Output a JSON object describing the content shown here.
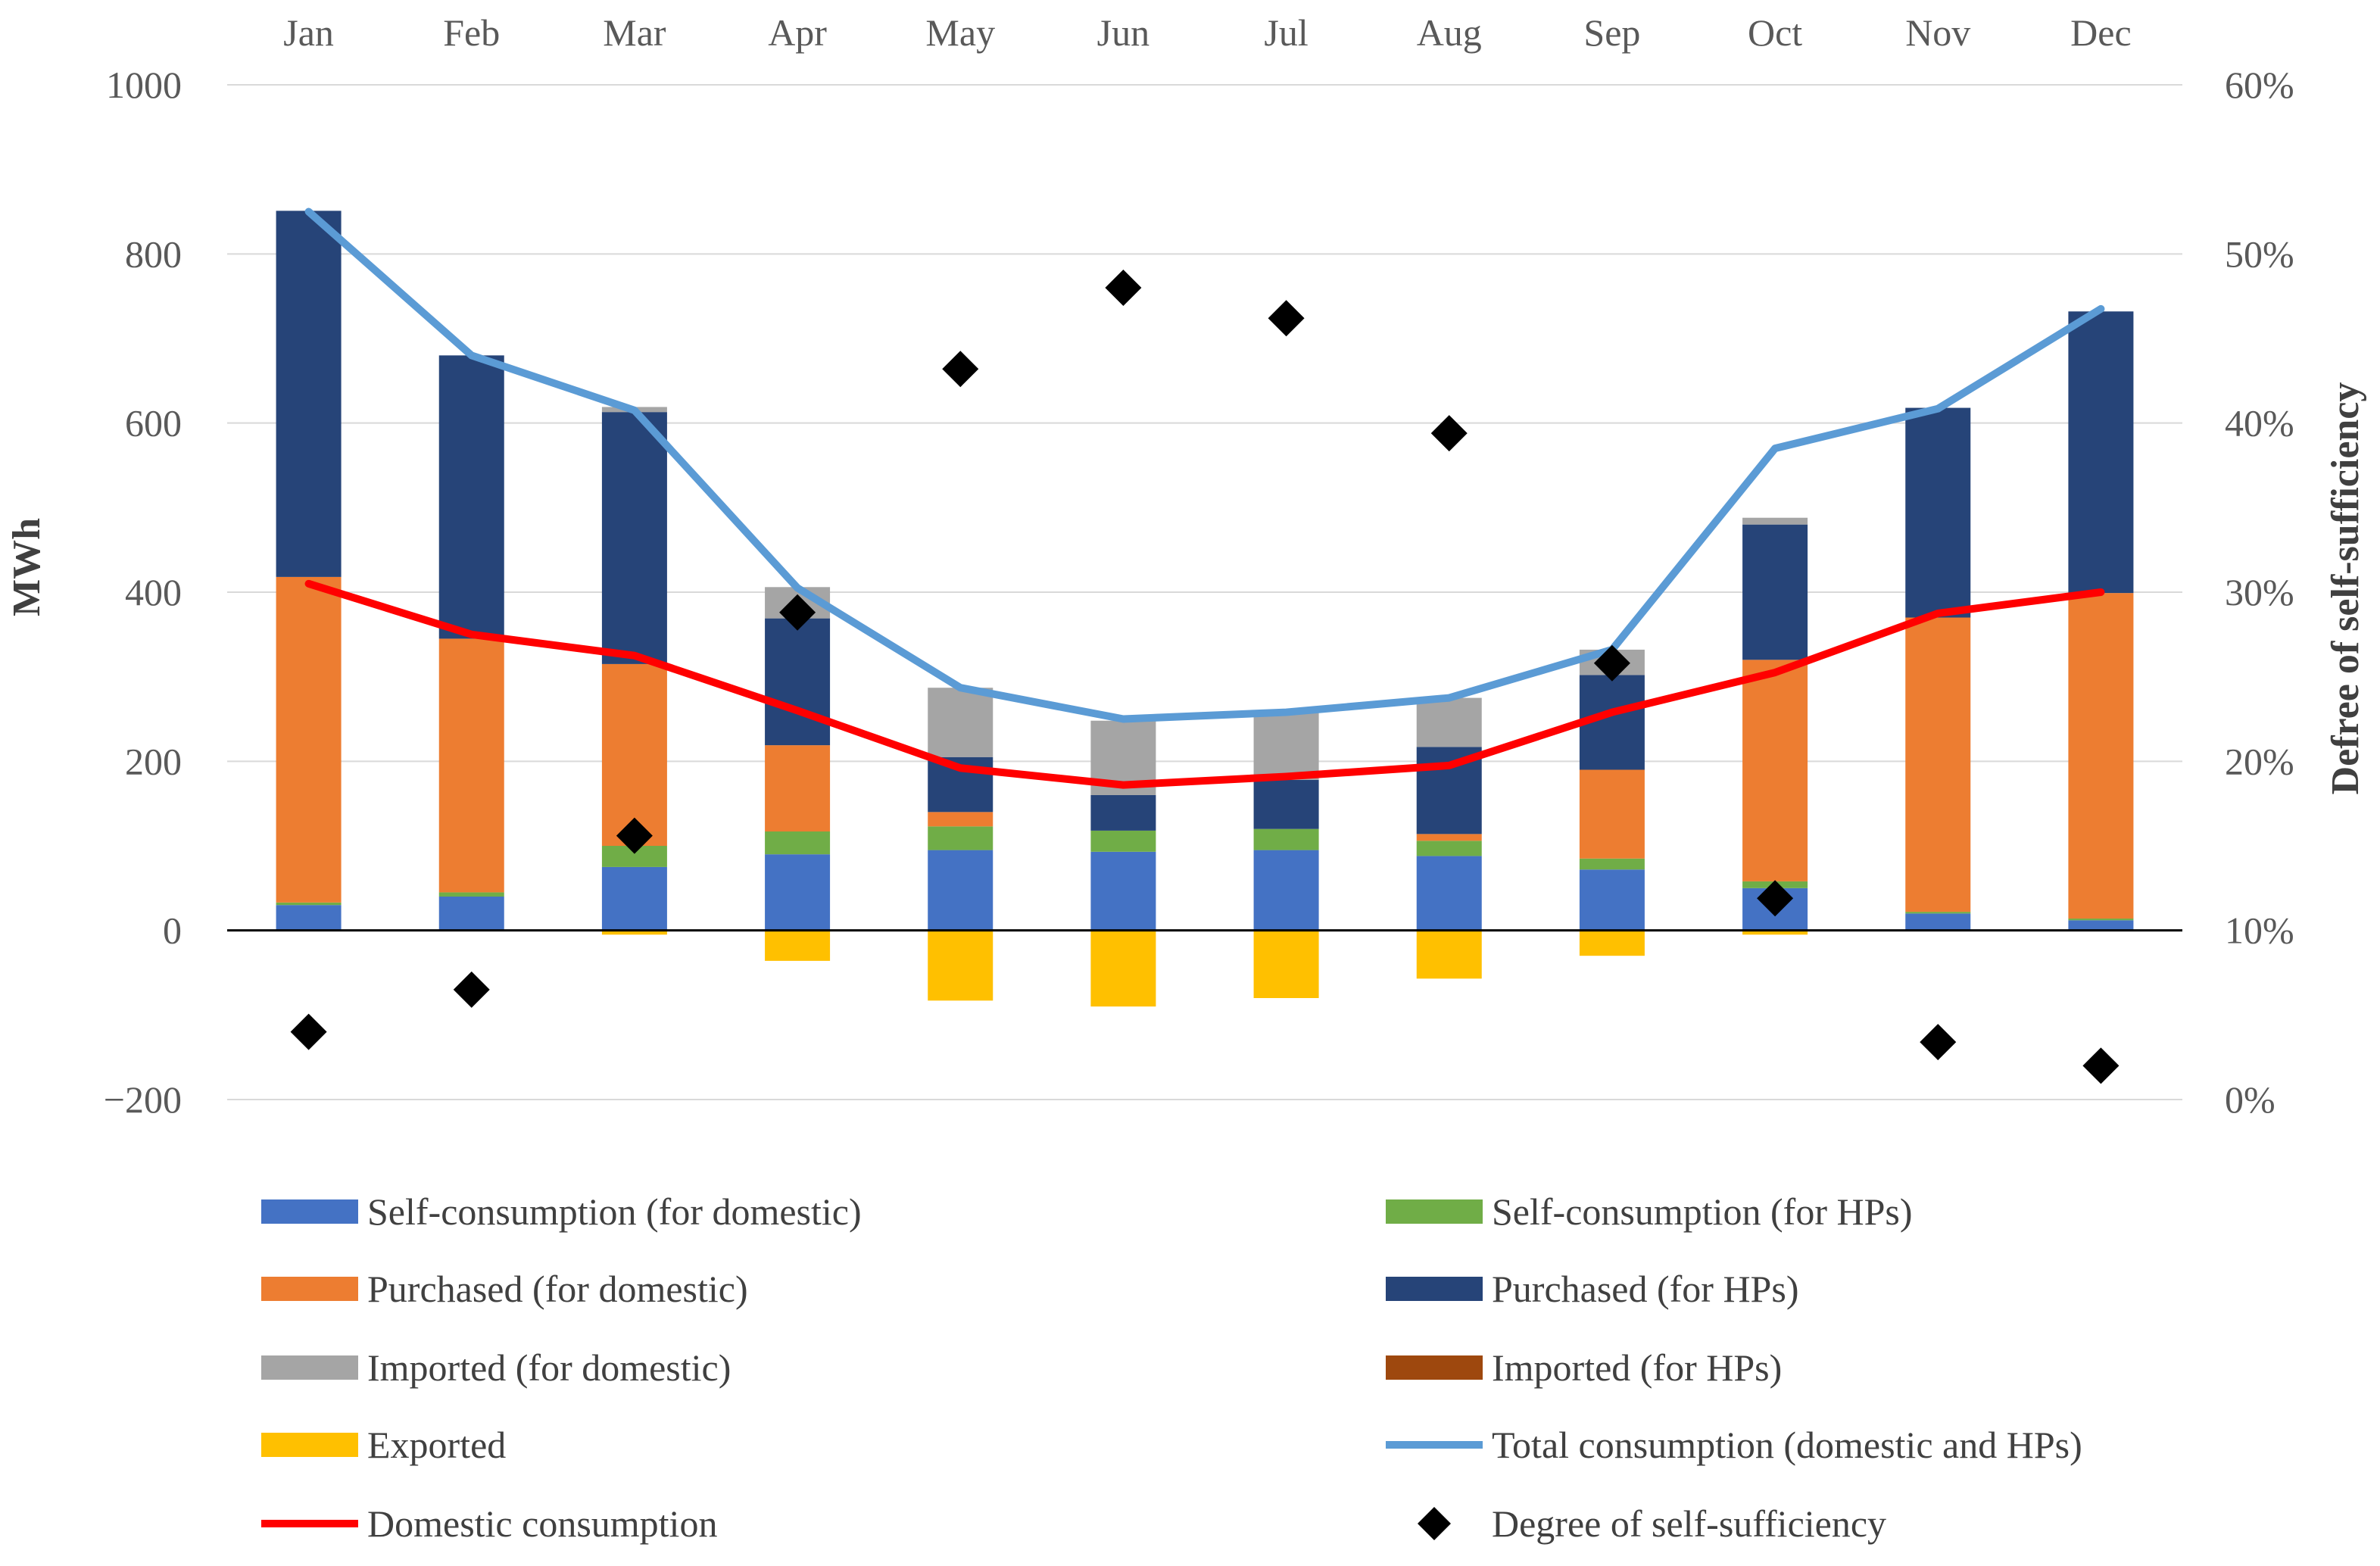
{
  "chart_data": {
    "type": "bar",
    "categories": [
      "Jan",
      "Feb",
      "Mar",
      "Apr",
      "May",
      "Jun",
      "Jul",
      "Aug",
      "Sep",
      "Oct",
      "Nov",
      "Dec"
    ],
    "ylabel": "MWh",
    "ylabel_right": "Defree of self-sufficiency",
    "ylim": [
      -200,
      1000
    ],
    "y_ticks": [
      -200,
      0,
      200,
      400,
      600,
      800,
      1000
    ],
    "y_tick_labels": [
      "−200",
      "0",
      "200",
      "400",
      "600",
      "800",
      "1000"
    ],
    "y2lim": [
      0,
      60
    ],
    "y2_ticks": [
      0,
      10,
      20,
      30,
      40,
      50,
      60
    ],
    "y2_tick_labels": [
      "0%",
      "10%",
      "20%",
      "30%",
      "40%",
      "50%",
      "60%"
    ],
    "grid": true,
    "legend_position": "bottom",
    "stacked": true,
    "series": [
      {
        "name": "Self-consumption (for domestic)",
        "kind": "bar",
        "color": "#4472C4",
        "values": [
          30,
          40,
          75,
          90,
          95,
          93,
          95,
          88,
          72,
          50,
          20,
          12
        ]
      },
      {
        "name": "Self-consumption (for HPs)",
        "kind": "bar",
        "color": "#70AD47",
        "values": [
          3,
          5,
          25,
          27,
          28,
          25,
          25,
          18,
          13,
          8,
          2,
          2
        ]
      },
      {
        "name": "Purchased (for domestic)",
        "kind": "bar",
        "color": "#ED7D31",
        "values": [
          385,
          300,
          215,
          102,
          17,
          0,
          0,
          8,
          105,
          262,
          348,
          385
        ]
      },
      {
        "name": "Purchased (for HPs)",
        "kind": "bar",
        "color": "#264478",
        "values": [
          433,
          335,
          298,
          150,
          65,
          42,
          58,
          103,
          112,
          160,
          248,
          333
        ]
      },
      {
        "name": "Imported (for domestic)",
        "kind": "bar",
        "color": "#A5A5A5",
        "values": [
          0,
          0,
          6,
          37,
          82,
          88,
          82,
          58,
          30,
          8,
          0,
          0
        ]
      },
      {
        "name": "Imported (for HPs)",
        "kind": "bar",
        "color": "#9E480E",
        "values": [
          0,
          0,
          0,
          0,
          0,
          0,
          0,
          0,
          0,
          0,
          0,
          0
        ]
      },
      {
        "name": "Exported",
        "kind": "bar",
        "color": "#FFC000",
        "values": [
          0,
          0,
          -5,
          -36,
          -83,
          -90,
          -80,
          -57,
          -30,
          -5,
          0,
          0
        ]
      },
      {
        "name": "Total consumption (domestic and HPs)",
        "kind": "line",
        "color": "#5B9BD5",
        "values": [
          850,
          680,
          615,
          405,
          287,
          250,
          258,
          275,
          332,
          570,
          617,
          735
        ]
      },
      {
        "name": "Domestic consumption",
        "kind": "line",
        "color": "#FF0000",
        "values": [
          410,
          350,
          325,
          260,
          192,
          172,
          182,
          195,
          258,
          305,
          375,
          400
        ]
      },
      {
        "name": "Degree of self-sufficiency",
        "kind": "scatter",
        "axis": "right",
        "color": "#000000",
        "values": [
          4.0,
          6.5,
          15.6,
          28.8,
          43.2,
          48.0,
          46.2,
          39.4,
          25.8,
          11.9,
          3.4,
          2.0
        ]
      }
    ]
  }
}
